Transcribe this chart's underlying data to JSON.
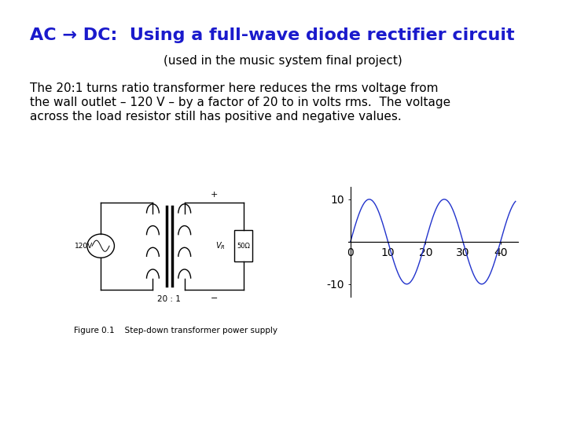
{
  "title": "AC → DC:  Using a full-wave diode rectifier circuit",
  "subtitle": "(used in the music system final project)",
  "body_line1": "The 20:1 turns ratio transformer here reduces the rms voltage from",
  "body_line2": "the wall outlet – 120 V – by a factor of 20 to in volts rms.  The voltage",
  "body_line3": "across the load resistor still has positive and negative values.",
  "figure_caption": "Figure 0.1    Step-down transformer power supply",
  "title_color": "#1a1acc",
  "body_color": "#000000",
  "title_fontsize": 16,
  "subtitle_fontsize": 11,
  "body_fontsize": 11,
  "caption_fontsize": 7.5,
  "bg_color": "#ffffff"
}
